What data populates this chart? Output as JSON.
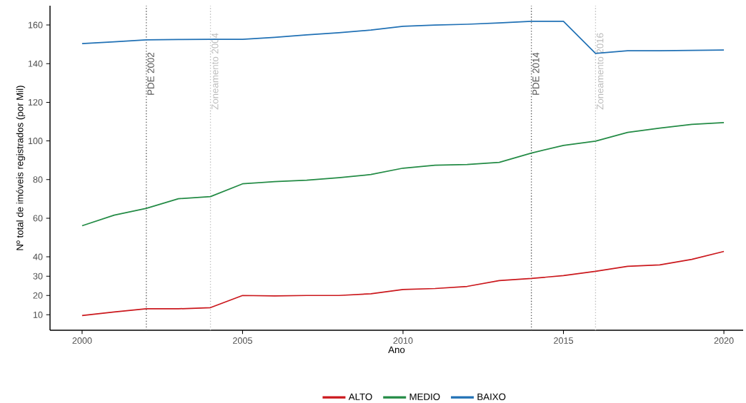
{
  "chart_data": {
    "type": "line",
    "xlabel": "Ano",
    "ylabel": "Nº total de imóveis registrados (por Mil)",
    "x": [
      2000,
      2001,
      2002,
      2003,
      2004,
      2005,
      2006,
      2007,
      2008,
      2009,
      2010,
      2011,
      2012,
      2013,
      2014,
      2015,
      2016,
      2017,
      2018,
      2019,
      2020
    ],
    "series": [
      {
        "name": "ALTO",
        "color": "#cb181d",
        "values": [
          9.6,
          11.5,
          13.1,
          13.1,
          13.7,
          20.0,
          19.8,
          20.0,
          20.0,
          20.9,
          23.1,
          23.6,
          24.7,
          27.7,
          28.8,
          30.3,
          32.5,
          35.1,
          35.8,
          38.7,
          42.8
        ]
      },
      {
        "name": "MEDIO",
        "color": "#238b45",
        "values": [
          56.1,
          61.6,
          65.1,
          70.1,
          71.2,
          77.8,
          78.9,
          79.7,
          81.0,
          82.6,
          85.9,
          87.4,
          87.8,
          88.9,
          93.7,
          97.7,
          99.9,
          104.4,
          106.6,
          108.6,
          109.5
        ]
      },
      {
        "name": "BAIXO",
        "color": "#2171b5",
        "values": [
          150.4,
          151.3,
          152.3,
          152.5,
          152.6,
          152.6,
          153.6,
          154.9,
          156.0,
          157.4,
          159.3,
          160.0,
          160.4,
          161.1,
          161.9,
          161.9,
          145.3,
          146.7,
          146.7,
          146.9,
          147.1
        ]
      }
    ],
    "xlim": [
      1999,
      2020.6
    ],
    "ylim": [
      2,
      170
    ],
    "xticks": [
      2000,
      2005,
      2010,
      2015,
      2020
    ],
    "yticks": [
      10,
      20,
      30,
      40,
      60,
      80,
      100,
      120,
      140,
      160
    ],
    "ref_lines": [
      {
        "axis": "x",
        "value": 2002,
        "label": "PDE 2002",
        "color": "#555555",
        "line_style": "dotted"
      },
      {
        "axis": "x",
        "value": 2004,
        "label": "Zoneamento 2004",
        "color": "#bbbbbb",
        "line_style": "dotted"
      },
      {
        "axis": "x",
        "value": 2014,
        "label": "PDE 2014",
        "color": "#555555",
        "line_style": "dotted"
      },
      {
        "axis": "x",
        "value": 2016,
        "label": "Zoneamento 2016",
        "color": "#bbbbbb",
        "line_style": "dotted"
      }
    ],
    "grid": false,
    "legend": "bottom",
    "marker": "none",
    "line_style": "solid"
  }
}
